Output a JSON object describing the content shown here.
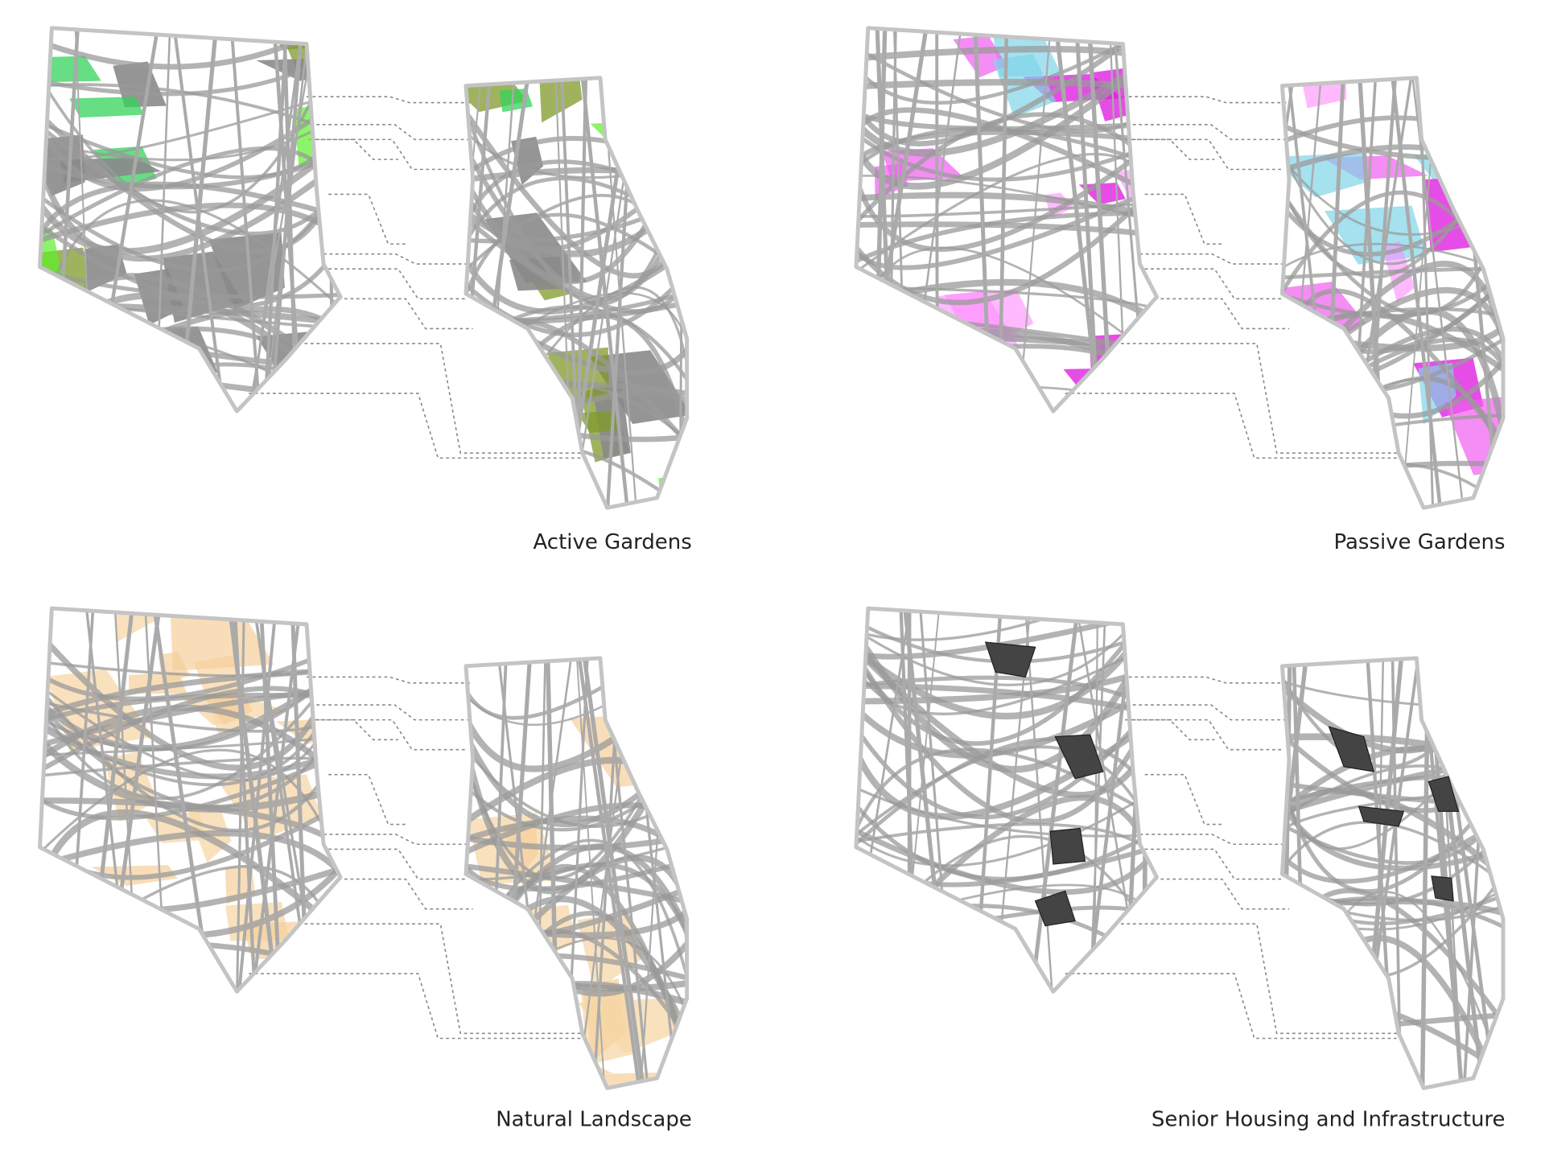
{
  "panels": [
    {
      "label": "Active Gardens"
    },
    {
      "label": "Passive Gardens"
    },
    {
      "label": "Natural Landscape"
    },
    {
      "label": "Senior Housing and Infrastructure"
    }
  ]
}
